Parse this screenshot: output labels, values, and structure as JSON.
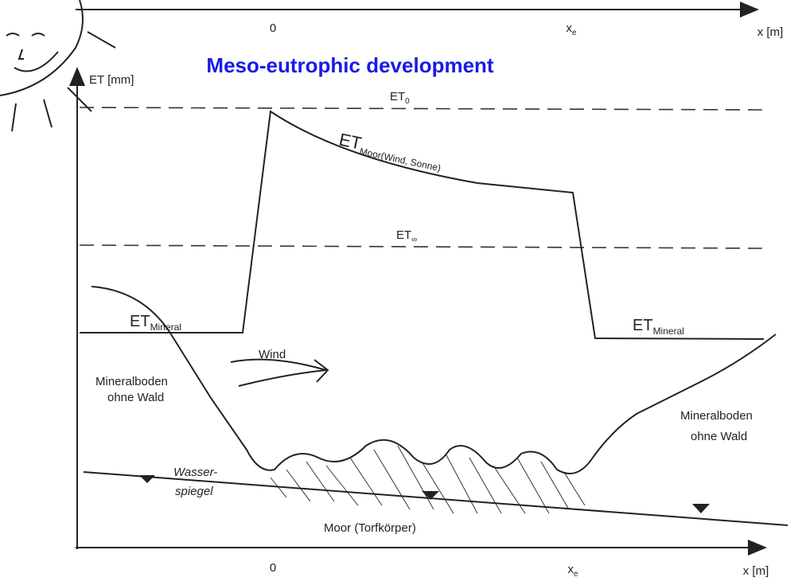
{
  "title": "Meso-eutrophic development",
  "top_axis": {
    "origin": "0",
    "xe": {
      "label": "x",
      "subscript": "e"
    },
    "unit": "x [m]"
  },
  "y_axis": {
    "label": "ET [mm]"
  },
  "curves": {
    "et0": {
      "label": "ET",
      "subscript": "0"
    },
    "et_moor": {
      "label": "ET",
      "subscript": "Moor(Wind, Sonne)"
    },
    "et_inf": {
      "label": "ET",
      "subscript": "∞"
    },
    "et_mineral_left": {
      "label": "ET",
      "subscript": "Mineral"
    },
    "et_mineral_right": {
      "label": "ET",
      "subscript": "Mineral"
    }
  },
  "wind": "Wind",
  "ground": {
    "left": [
      "Mineralboden",
      "ohne Wald"
    ],
    "right": [
      "Mineralboden",
      "ohne Wald"
    ],
    "water": [
      "Wasser-",
      "spiegel"
    ],
    "moor": "Moor (Torfkörper)"
  },
  "bottom_axis": {
    "origin": "0",
    "xe": {
      "label": "x",
      "subscript": "e"
    },
    "unit": "x [m]"
  }
}
